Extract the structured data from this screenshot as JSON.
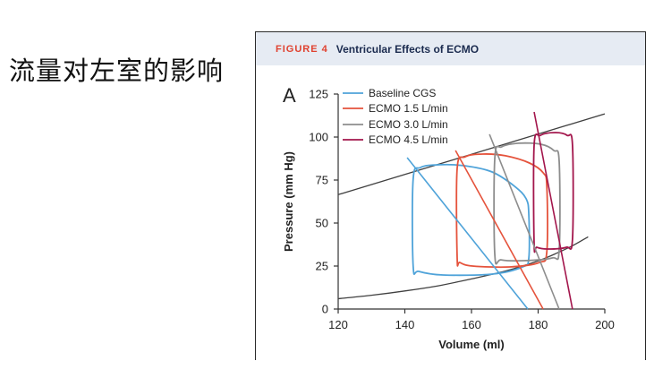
{
  "slide": {
    "title": "流量对左室的影响"
  },
  "figure": {
    "label": "FIGURE 4",
    "title": "Ventricular Effects of ECMO",
    "label_color": "#e0412f",
    "title_color": "#1b2b4f",
    "header_bg": "#e6ebf3"
  },
  "chart_data": {
    "type": "line",
    "panel_label": "A",
    "xlabel": "Volume (ml)",
    "ylabel": "Pressure (mm Hg)",
    "xlim": [
      120,
      200
    ],
    "ylim": [
      0,
      125
    ],
    "xticks": [
      120,
      140,
      160,
      180,
      200
    ],
    "yticks": [
      0,
      25,
      50,
      75,
      100,
      125
    ],
    "grid": false,
    "legend": "top-left",
    "curves": [
      {
        "color": "#404040",
        "x": [
          120,
          130,
          140,
          150,
          160,
          170,
          180,
          185,
          190,
          195
        ],
        "y": [
          6,
          8,
          10.5,
          13.5,
          17.5,
          22,
          28,
          32,
          36.5,
          42
        ]
      },
      {
        "color": "#404040",
        "x": [
          120,
          160,
          200
        ],
        "y": [
          66.5,
          90,
          113.5
        ]
      }
    ],
    "series": [
      {
        "name": "Baseline CGS",
        "color": "#4fa3d9",
        "loop": {
          "x": [
            142.5,
            142.5,
            144.7,
            150.6,
            158.1,
            166.2,
            172.9,
            176.4,
            177.2,
            177.2,
            175.3,
            166.2,
            151.4,
            144.2
          ],
          "y": [
            25.0,
            75.5,
            82.3,
            83.9,
            83.3,
            79.7,
            71.4,
            64.1,
            54.7,
            29.7,
            24.5,
            20.3,
            19.8,
            21.9
          ]
        },
        "line": {
          "x": [
            140.7,
            176.9
          ],
          "y": [
            88,
            0
          ]
        }
      },
      {
        "name": "ECMO 1.5 L/min",
        "color": "#e5533c",
        "loop": {
          "x": [
            155.7,
            155.7,
            158.1,
            163.5,
            170.2,
            177.4,
            181.5,
            182.6,
            182.6,
            180.4,
            171.5,
            160.3,
            156.5
          ],
          "y": [
            29.7,
            81.8,
            88.5,
            90.1,
            89.1,
            84.9,
            79.2,
            71.4,
            33.3,
            27.1,
            24.5,
            25.0,
            27.1
          ]
        },
        "line": {
          "x": [
            155.2,
            181.5
          ],
          "y": [
            92.2,
            0
          ]
        }
      },
      {
        "name": "ECMO 3.0 L/min",
        "color": "#8d8d8d",
        "loop": {
          "x": [
            167.0,
            167.0,
            169.1,
            174.2,
            180.9,
            184.7,
            186.3,
            186.3,
            184.2,
            175.6,
            168.9
          ],
          "y": [
            31.3,
            88.0,
            94.3,
            96.4,
            95.8,
            92.2,
            85.9,
            34.4,
            29.7,
            28.1,
            28.6
          ]
        },
        "line": {
          "x": [
            165.4,
            186.3
          ],
          "y": [
            101.6,
            0
          ]
        }
      },
      {
        "name": "ECMO 4.5 L/min",
        "color": "#a3164c",
        "loop": {
          "x": [
            178.8,
            178.8,
            180.7,
            185.2,
            188.7,
            190.3,
            190.3,
            188.4,
            182.8,
            179.6
          ],
          "y": [
            38.0,
            95.3,
            101.0,
            102.6,
            101.0,
            95.3,
            40.6,
            35.9,
            34.9,
            35.9
          ]
        },
        "line": {
          "x": [
            178.8,
            190.3
          ],
          "y": [
            114.6,
            0
          ]
        }
      }
    ]
  }
}
